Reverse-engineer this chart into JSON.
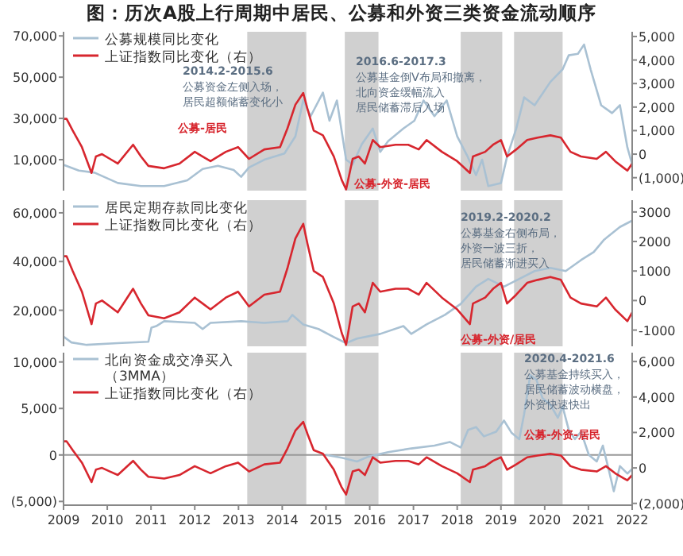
{
  "chart_data": [
    {
      "type": "line",
      "title": "图：历次A股上行周期中居民、公募和外资三类资金流动顺序",
      "xlim": [
        2009,
        2022
      ],
      "tick_labels": "y",
      "legend": "top left",
      "ylim": [
        -5000,
        72000
      ],
      "yticks": [
        {
          "value": 70000,
          "label": "70,000"
        },
        {
          "value": 50000,
          "label": "50,000"
        },
        {
          "value": 30000,
          "label": "30,000"
        },
        {
          "value": 10000,
          "label": "10,000"
        }
      ],
      "y2lim": [
        -1550,
        5200
      ],
      "y2ticks": [
        {
          "value": 5000,
          "label": "5,000"
        },
        {
          "value": 4000,
          "label": "4,000"
        },
        {
          "value": 3000,
          "label": "3,000"
        },
        {
          "value": 2000,
          "label": "2,000"
        },
        {
          "value": 1000,
          "label": "1,000"
        },
        0,
        {
          "value": -1000,
          "label": "(1,000)"
        }
      ],
      "series": [
        {
          "name": "公募规模同比变化",
          "color": "#a9c1d3",
          "x": [
            2009,
            2009.35,
            2009.71,
            2010.24,
            2010.77,
            2011.3,
            2011.83,
            2012.18,
            2012.53,
            2012.89,
            2013.06,
            2013.24,
            2013.59,
            2014.05,
            2014.3,
            2014.48,
            2014.65,
            2014.93,
            2015.08,
            2015.25,
            2015.46,
            2015.61,
            2015.82,
            2016.07,
            2016.24,
            2016.42,
            2016.77,
            2017.02,
            2017.23,
            2017.48,
            2017.76,
            2018.0,
            2018.22,
            2018.43,
            2018.57,
            2018.71,
            2019.0,
            2019.14,
            2019.35,
            2019.53,
            2019.77,
            2020.13,
            2020.41,
            2020.55,
            2020.76,
            2020.9,
            2021.05,
            2021.29,
            2021.54,
            2021.72,
            2021.89,
            2022.0
          ],
          "values": [
            7500,
            4700,
            3700,
            -1300,
            -2800,
            -2800,
            0,
            5500,
            7000,
            5000,
            1700,
            6200,
            10000,
            13000,
            21300,
            38900,
            31100,
            42500,
            28900,
            38700,
            10000,
            7700,
            17500,
            25100,
            13800,
            19000,
            25100,
            28900,
            38700,
            31100,
            38700,
            21300,
            12300,
            2500,
            10000,
            -2800,
            -1300,
            11500,
            25100,
            40200,
            36400,
            47700,
            53800,
            60600,
            61300,
            65800,
            53800,
            36400,
            32600,
            36400,
            16000,
            7700
          ]
        },
        {
          "name": "上证指数同比变化（右）",
          "color": "#d7262e",
          "axis": "y2",
          "x": [
            2009,
            2009.07,
            2009.21,
            2009.42,
            2009.64,
            2009.74,
            2009.88,
            2010.06,
            2010.24,
            2010.59,
            2010.77,
            2010.94,
            2011.3,
            2011.65,
            2012.0,
            2012.18,
            2012.36,
            2012.71,
            2012.99,
            2013.24,
            2013.59,
            2013.95,
            2014.12,
            2014.3,
            2014.48,
            2014.58,
            2014.72,
            2014.93,
            2015.18,
            2015.36,
            2015.46,
            2015.61,
            2015.75,
            2015.89,
            2016.07,
            2016.24,
            2016.59,
            2016.88,
            2017.12,
            2017.3,
            2017.65,
            2018.0,
            2018.29,
            2018.36,
            2018.64,
            2018.82,
            2019.0,
            2019.14,
            2019.35,
            2019.6,
            2019.84,
            2020.13,
            2020.37,
            2020.59,
            2020.83,
            2021.19,
            2021.4,
            2021.61,
            2021.82,
            2021.89,
            2022.0
          ],
          "values": [
            1500,
            1500,
            1000,
            300,
            -800,
            -100,
            0,
            -200,
            -400,
            400,
            -100,
            -500,
            -600,
            -400,
            100,
            -100,
            -300,
            100,
            300,
            -200,
            200,
            300,
            1100,
            2100,
            2600,
            1900,
            1000,
            800,
            -100,
            -1100,
            -1500,
            -200,
            -100,
            -400,
            600,
            300,
            400,
            400,
            200,
            600,
            100,
            -300,
            -800,
            -100,
            100,
            400,
            600,
            -100,
            200,
            600,
            700,
            800,
            700,
            100,
            -100,
            -200,
            100,
            -300,
            -600,
            -700,
            -400
          ]
        }
      ],
      "bands": [
        {
          "axis": "x",
          "from": 2013.2,
          "to": 2014.55,
          "color": "#d0d0d0"
        },
        {
          "axis": "x",
          "from": 2015.43,
          "to": 2016.2,
          "color": "#d0d0d0"
        },
        {
          "axis": "x",
          "from": 2018.08,
          "to": 2019.03,
          "color": "#d0d0d0"
        },
        {
          "axis": "x",
          "from": 2019.3,
          "to": 2020.41,
          "color": "#d0d0d0"
        }
      ],
      "annotations": [
        "2014.2-2015.6",
        "公募资金左侧入场，居民超额储蓄变化小",
        "公募-居民",
        "2016.6-2017.3",
        "公募基金倒V布局和撤离，北向资金缓幅流入居民储蓄滞后入场",
        "公募-外资-居民"
      ]
    },
    {
      "type": "line",
      "xlim": [
        2009,
        2022
      ],
      "tick_labels": "y",
      "legend": "top left",
      "ylim": [
        5200,
        65200
      ],
      "yticks": [
        {
          "value": 60000,
          "label": "60,000"
        },
        {
          "value": 40000,
          "label": "40,000"
        },
        {
          "value": 20000,
          "label": "20,000"
        }
      ],
      "y2lim": [
        -1550,
        3400
      ],
      "y2ticks": [
        3000,
        2000,
        1000,
        0,
        -1000
      ],
      "series": [
        {
          "name": "居民定期存款同比变化",
          "color": "#a9c1d3",
          "x": [
            2009,
            2009.18,
            2009.53,
            2010.24,
            2010.94,
            2011.01,
            2011.12,
            2011.3,
            2012.0,
            2012.18,
            2012.36,
            2013.06,
            2013.59,
            2014.12,
            2014.23,
            2014.48,
            2014.83,
            2015.18,
            2015.46,
            2015.71,
            2016.24,
            2016.77,
            2016.95,
            2017.3,
            2017.72,
            2018.08,
            2018.43,
            2018.71,
            2019.07,
            2019.42,
            2019.77,
            2020.13,
            2020.48,
            2020.83,
            2021.12,
            2021.36,
            2021.72,
            2022.0
          ],
          "values": [
            9200,
            6800,
            5800,
            6500,
            7100,
            12900,
            13500,
            15500,
            14800,
            12300,
            14800,
            15500,
            14800,
            15500,
            18100,
            14200,
            12300,
            9000,
            6500,
            8400,
            10300,
            13500,
            10300,
            14200,
            18100,
            22600,
            29700,
            32900,
            29700,
            32900,
            36100,
            37400,
            36100,
            40600,
            43900,
            49000,
            54200,
            56800
          ]
        },
        {
          "name": "上证指数同比变化（右）",
          "color": "#d7262e",
          "axis": "y2",
          "x": [
            2009,
            2009.07,
            2009.21,
            2009.42,
            2009.64,
            2009.74,
            2009.88,
            2010.06,
            2010.24,
            2010.59,
            2010.77,
            2010.94,
            2011.3,
            2011.65,
            2012.0,
            2012.18,
            2012.36,
            2012.71,
            2012.99,
            2013.24,
            2013.59,
            2013.95,
            2014.12,
            2014.3,
            2014.48,
            2014.58,
            2014.72,
            2014.93,
            2015.18,
            2015.36,
            2015.46,
            2015.61,
            2015.75,
            2015.89,
            2016.07,
            2016.24,
            2016.59,
            2016.88,
            2017.12,
            2017.3,
            2017.65,
            2018.0,
            2018.29,
            2018.36,
            2018.64,
            2018.82,
            2019.0,
            2019.14,
            2019.35,
            2019.6,
            2019.84,
            2020.13,
            2020.37,
            2020.59,
            2020.83,
            2021.19,
            2021.4,
            2021.61,
            2021.82,
            2021.89,
            2022.0
          ],
          "values": [
            1500,
            1500,
            1000,
            300,
            -800,
            -100,
            0,
            -200,
            -400,
            400,
            -100,
            -500,
            -600,
            -400,
            100,
            -100,
            -300,
            100,
            300,
            -200,
            200,
            300,
            1100,
            2100,
            2600,
            1900,
            1000,
            800,
            -100,
            -1100,
            -1500,
            -200,
            -100,
            -400,
            600,
            300,
            400,
            400,
            200,
            600,
            100,
            -300,
            -800,
            -100,
            100,
            400,
            600,
            -100,
            200,
            600,
            700,
            800,
            700,
            100,
            -100,
            -200,
            100,
            -300,
            -600,
            -700,
            -400
          ]
        }
      ],
      "bands": [
        {
          "axis": "x",
          "from": 2013.2,
          "to": 2014.55,
          "color": "#d0d0d0"
        },
        {
          "axis": "x",
          "from": 2015.43,
          "to": 2016.2,
          "color": "#d0d0d0"
        },
        {
          "axis": "x",
          "from": 2018.08,
          "to": 2019.03,
          "color": "#d0d0d0"
        },
        {
          "axis": "x",
          "from": 2019.3,
          "to": 2020.41,
          "color": "#d0d0d0"
        }
      ],
      "annotations": [
        "2019.2-2020.2",
        "公募基金右侧布局，外资一波三折，居民储蓄渐进买入",
        "公募-外资/居民"
      ]
    },
    {
      "type": "line",
      "xlim": [
        2009,
        2022
      ],
      "xticks": [
        2009,
        2010,
        2011,
        2012,
        2013,
        2014,
        2015,
        2016,
        2017,
        2018,
        2019,
        2020,
        2021,
        2022
      ],
      "legend": "top left",
      "ylim": [
        -5400,
        11000
      ],
      "yticks": [
        {
          "value": 10000,
          "label": "10,000"
        },
        {
          "value": 5000,
          "label": "5,000"
        },
        0,
        {
          "value": -5000,
          "label": "(5,000)"
        }
      ],
      "y2lim": [
        -2100,
        6500
      ],
      "y2ticks": [
        {
          "value": 6000,
          "label": "6,000"
        },
        {
          "value": 4000,
          "label": "4,000"
        },
        {
          "value": 2000,
          "label": "2,000"
        },
        0,
        {
          "value": -2000,
          "label": "(2,000)"
        }
      ],
      "ref_lines": [
        {
          "axis": "y",
          "value": 0,
          "color": "#999999"
        }
      ],
      "series": [
        {
          "name": "北向资金成交净买入（3MMA）",
          "color": "#a9c1d3",
          "x": [
            2015.0,
            2015.36,
            2015.71,
            2015.96,
            2016.42,
            2016.95,
            2017.48,
            2017.83,
            2018.08,
            2018.25,
            2018.43,
            2018.61,
            2018.89,
            2019.07,
            2019.24,
            2019.42,
            2019.53,
            2019.67,
            2019.81,
            2019.95,
            2020.13,
            2020.3,
            2020.41,
            2020.55,
            2020.69,
            2020.83,
            2021.01,
            2021.19,
            2021.33,
            2021.47,
            2021.58,
            2021.72,
            2021.89,
            2022.0
          ],
          "values": [
            0,
            -300,
            -700,
            -200,
            300,
            700,
            1000,
            1400,
            800,
            2700,
            3000,
            2000,
            2500,
            3700,
            2400,
            1700,
            4400,
            8600,
            8100,
            6100,
            5400,
            4000,
            5200,
            2700,
            1700,
            2500,
            0,
            -700,
            1000,
            -1700,
            -3900,
            -1200,
            -2000,
            -1500
          ]
        },
        {
          "name": "上证指数同比变化（右）",
          "color": "#d7262e",
          "axis": "y2",
          "x": [
            2009,
            2009.07,
            2009.21,
            2009.42,
            2009.64,
            2009.74,
            2009.88,
            2010.06,
            2010.24,
            2010.59,
            2010.77,
            2010.94,
            2011.3,
            2011.65,
            2012.0,
            2012.18,
            2012.36,
            2012.71,
            2012.99,
            2013.24,
            2013.59,
            2013.95,
            2014.12,
            2014.3,
            2014.48,
            2014.58,
            2014.72,
            2014.93,
            2015.18,
            2015.36,
            2015.46,
            2015.61,
            2015.75,
            2015.89,
            2016.07,
            2016.24,
            2016.59,
            2016.88,
            2017.12,
            2017.3,
            2017.65,
            2018.0,
            2018.29,
            2018.36,
            2018.64,
            2018.82,
            2019.0,
            2019.14,
            2019.35,
            2019.6,
            2019.84,
            2020.13,
            2020.37,
            2020.59,
            2020.83,
            2021.19,
            2021.4,
            2021.61,
            2021.82,
            2021.89,
            2022.0
          ],
          "values": [
            1500,
            1500,
            1000,
            300,
            -800,
            -100,
            0,
            -200,
            -400,
            400,
            -100,
            -500,
            -600,
            -400,
            100,
            -100,
            -300,
            100,
            300,
            -200,
            200,
            300,
            1100,
            2100,
            2600,
            1900,
            1000,
            800,
            -100,
            -1100,
            -1500,
            -200,
            -100,
            -400,
            600,
            300,
            400,
            400,
            200,
            600,
            100,
            -300,
            -800,
            -100,
            100,
            400,
            600,
            -100,
            200,
            600,
            700,
            800,
            700,
            100,
            -100,
            -200,
            100,
            -300,
            -600,
            -700,
            -400
          ]
        }
      ],
      "bands": [
        {
          "axis": "x",
          "from": 2013.2,
          "to": 2014.55,
          "color": "#d0d0d0"
        },
        {
          "axis": "x",
          "from": 2015.43,
          "to": 2016.2,
          "color": "#d0d0d0"
        },
        {
          "axis": "x",
          "from": 2018.08,
          "to": 2019.03,
          "color": "#d0d0d0"
        },
        {
          "axis": "x",
          "from": 2019.3,
          "to": 2020.41,
          "color": "#d0d0d0"
        }
      ],
      "annotations": [
        "2020.4-2021.6",
        "公募基金持续买入，居民储蓄波动横盘，外资快速快出",
        "公募-外资-居民"
      ]
    }
  ]
}
